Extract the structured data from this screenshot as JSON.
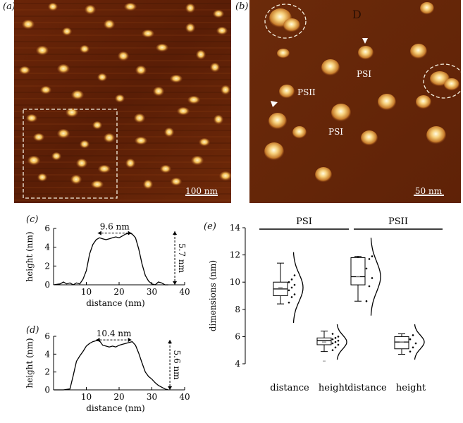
{
  "panels": {
    "a": {
      "letter": "(a)",
      "scale_bar": "100 nm"
    },
    "b": {
      "letter": "(b)",
      "scale_bar": "50 nm",
      "labels": [
        "PSI",
        "PSII",
        "PSI"
      ],
      "corner_mark": "D"
    },
    "c": {
      "letter": "(c)"
    },
    "d": {
      "letter": "(d)"
    },
    "e": {
      "letter": "(e)"
    }
  },
  "chart_data": [
    {
      "id": "c",
      "type": "line",
      "xlabel": "distance (nm)",
      "ylabel": "height (nm)",
      "xlim": [
        0,
        40
      ],
      "ylim": [
        0,
        6
      ],
      "xticks": [
        10,
        20,
        30,
        40
      ],
      "yticks": [
        0,
        2,
        4,
        6
      ],
      "annotations": {
        "width": "9.6 nm",
        "height": "5.7 nm"
      },
      "x": [
        0,
        2,
        3,
        4,
        5,
        6,
        7,
        8,
        9,
        10,
        11,
        12,
        13,
        14,
        15,
        16,
        17,
        18,
        19,
        20,
        21,
        22,
        23,
        24,
        25,
        26,
        27,
        28,
        29,
        30,
        31,
        32,
        33,
        34,
        35
      ],
      "y": [
        0,
        0.1,
        0.3,
        0.1,
        0.2,
        0.0,
        0.2,
        0.1,
        0.6,
        1.5,
        3.3,
        4.3,
        4.8,
        5.0,
        4.9,
        4.8,
        4.9,
        5.0,
        5.1,
        5.0,
        5.2,
        5.4,
        5.5,
        5.4,
        5.0,
        3.8,
        2.2,
        1.0,
        0.4,
        0.1,
        0.0,
        0.3,
        0.2,
        0.0,
        0.0
      ]
    },
    {
      "id": "d",
      "type": "line",
      "xlabel": "distance (nm)",
      "ylabel": "height (nm)",
      "xlim": [
        0,
        40
      ],
      "ylim": [
        0,
        6
      ],
      "xticks": [
        10,
        20,
        30,
        40
      ],
      "yticks": [
        0,
        2,
        4,
        6
      ],
      "annotations": {
        "width": "10.4 nm",
        "height": "5.6 nm"
      },
      "x": [
        0,
        3,
        5,
        6,
        7,
        8,
        9,
        10,
        11,
        12,
        13,
        14,
        15,
        16,
        17,
        18,
        19,
        20,
        21,
        22,
        23,
        24,
        25,
        26,
        27,
        28,
        29,
        30,
        31,
        32,
        33,
        34,
        35
      ],
      "y": [
        0,
        0,
        0.1,
        1.6,
        3.2,
        3.8,
        4.3,
        4.9,
        5.2,
        5.4,
        5.5,
        5.5,
        5.0,
        4.9,
        4.8,
        4.9,
        4.8,
        5.0,
        5.1,
        5.2,
        5.3,
        5.4,
        5.0,
        4.1,
        3.0,
        2.0,
        1.5,
        1.2,
        0.8,
        0.5,
        0.3,
        0.1,
        0.0
      ]
    },
    {
      "id": "e",
      "type": "box",
      "ylabel": "dimensions (nm)",
      "ylim": [
        4,
        14
      ],
      "yticks": [
        4,
        6,
        8,
        10,
        12,
        14
      ],
      "groups": [
        "PSI",
        "PSII"
      ],
      "categories": [
        "distance",
        "height",
        "distance",
        "height"
      ],
      "boxes": [
        {
          "group": "PSI",
          "category": "distance",
          "min": 8.4,
          "q1": 9.0,
          "median": 9.5,
          "q3": 10.0,
          "max": 11.4,
          "mean": 9.6,
          "points": [
            8.5,
            8.9,
            9.1,
            9.4,
            9.6,
            9.8,
            10.0,
            10.2,
            10.5
          ]
        },
        {
          "group": "PSI",
          "category": "height",
          "min": 4.9,
          "q1": 5.4,
          "median": 5.7,
          "q3": 5.9,
          "max": 6.4,
          "mean": 5.6,
          "outliers": [
            4.2
          ],
          "points": [
            5.0,
            5.2,
            5.4,
            5.5,
            5.6,
            5.7,
            5.8,
            5.9,
            6.0,
            6.2
          ]
        },
        {
          "group": "PSII",
          "category": "distance",
          "min": 8.6,
          "q1": 9.8,
          "median": 10.4,
          "q3": 11.8,
          "max": 11.9,
          "mean": 10.4,
          "points": [
            8.6,
            9.7,
            10.3,
            11.0,
            11.7,
            11.9
          ]
        },
        {
          "group": "PSII",
          "category": "height",
          "min": 4.7,
          "q1": 5.1,
          "median": 5.6,
          "q3": 6.0,
          "max": 6.2,
          "mean": 5.6,
          "points": [
            4.9,
            5.2,
            5.5,
            5.8,
            6.1
          ]
        }
      ]
    }
  ]
}
